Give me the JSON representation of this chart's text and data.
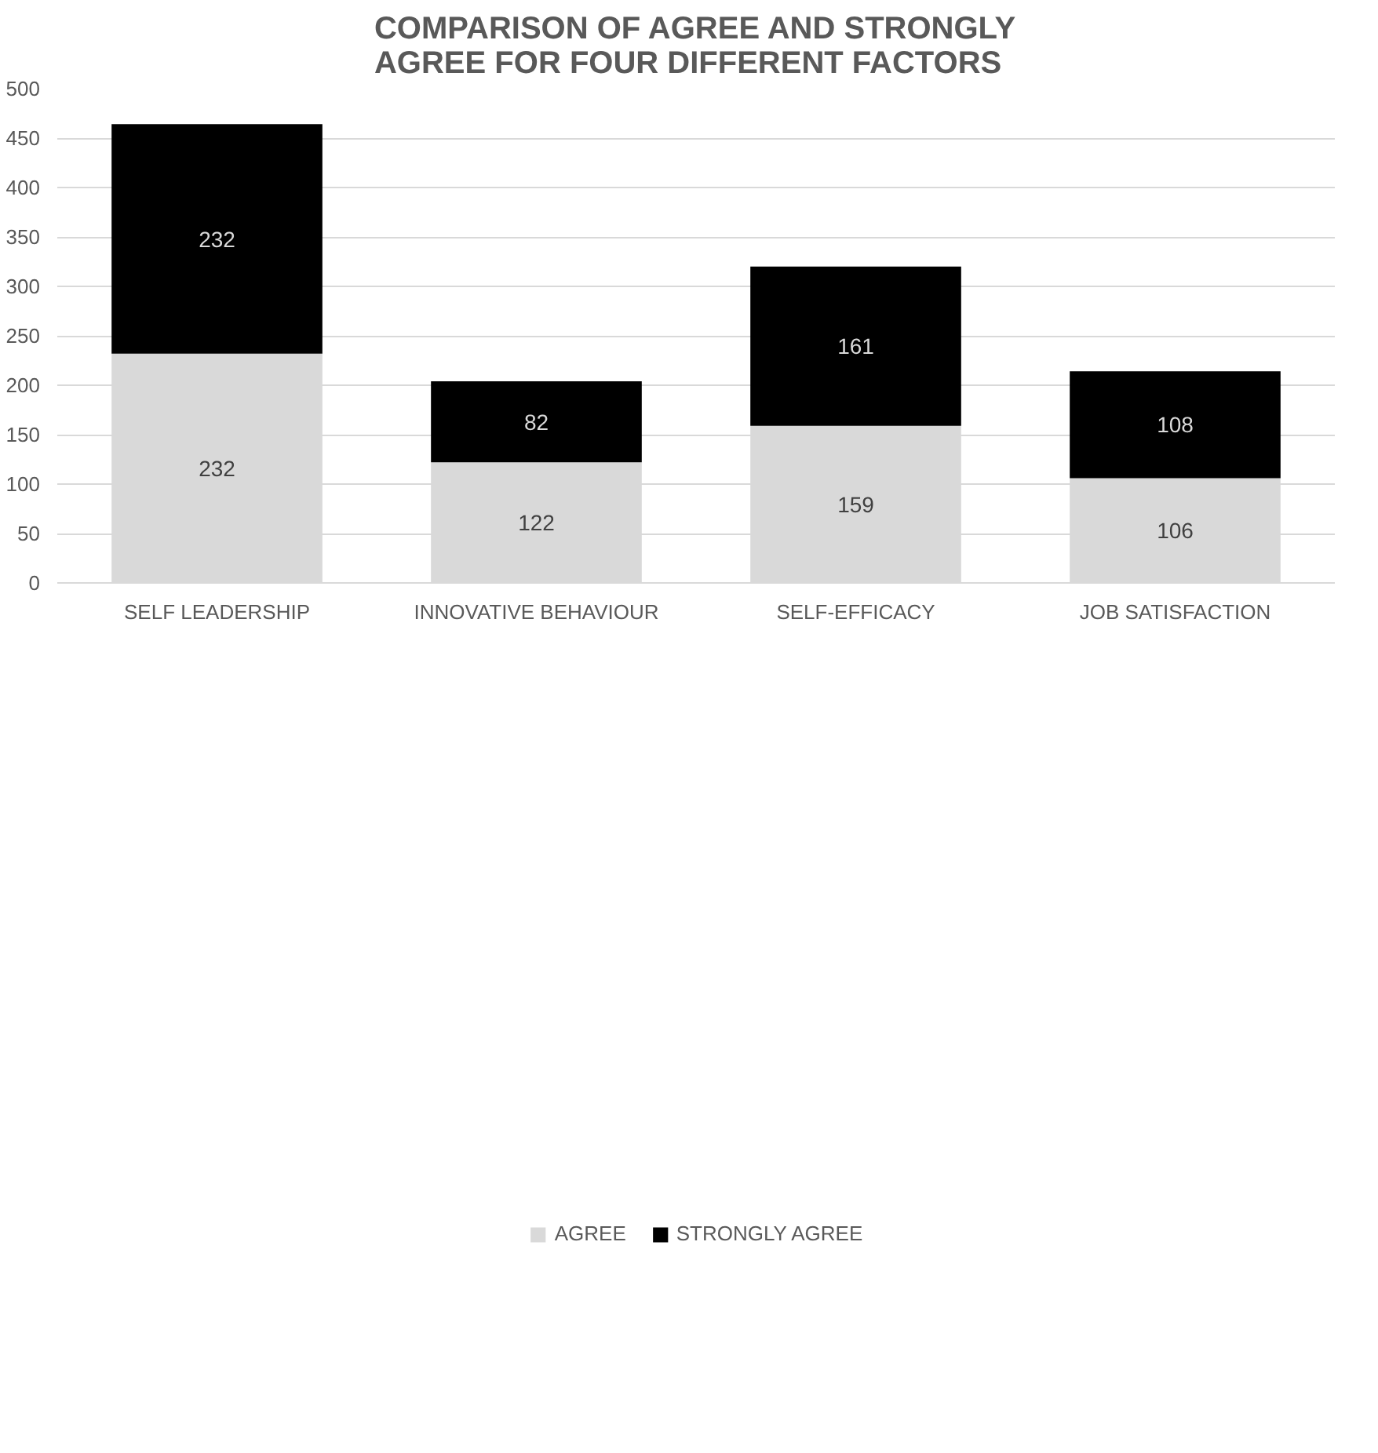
{
  "chart_data": {
    "type": "bar",
    "title": "COMPARISON OF AGREE AND STRONGLY AGREE FOR FOUR DIFFERENT FACTORS",
    "categories": [
      "SELF LEADERSHIP",
      "INNOVATIVE BEHAVIOUR",
      "SELF-EFFICACY",
      "JOB SATISFACTION"
    ],
    "stacked": true,
    "series": [
      {
        "name": "AGREE",
        "color": "#d9d9d9",
        "values": [
          232,
          122,
          159,
          106
        ]
      },
      {
        "name": "STRONGLY AGREE",
        "color": "#000000",
        "values": [
          232,
          82,
          161,
          108
        ]
      }
    ],
    "ylim": [
      0,
      500
    ],
    "yticks": [
      0,
      50,
      100,
      150,
      200,
      250,
      300,
      350,
      400,
      450,
      500
    ],
    "grid": "y",
    "legend": "bottom",
    "data_labels": true
  }
}
